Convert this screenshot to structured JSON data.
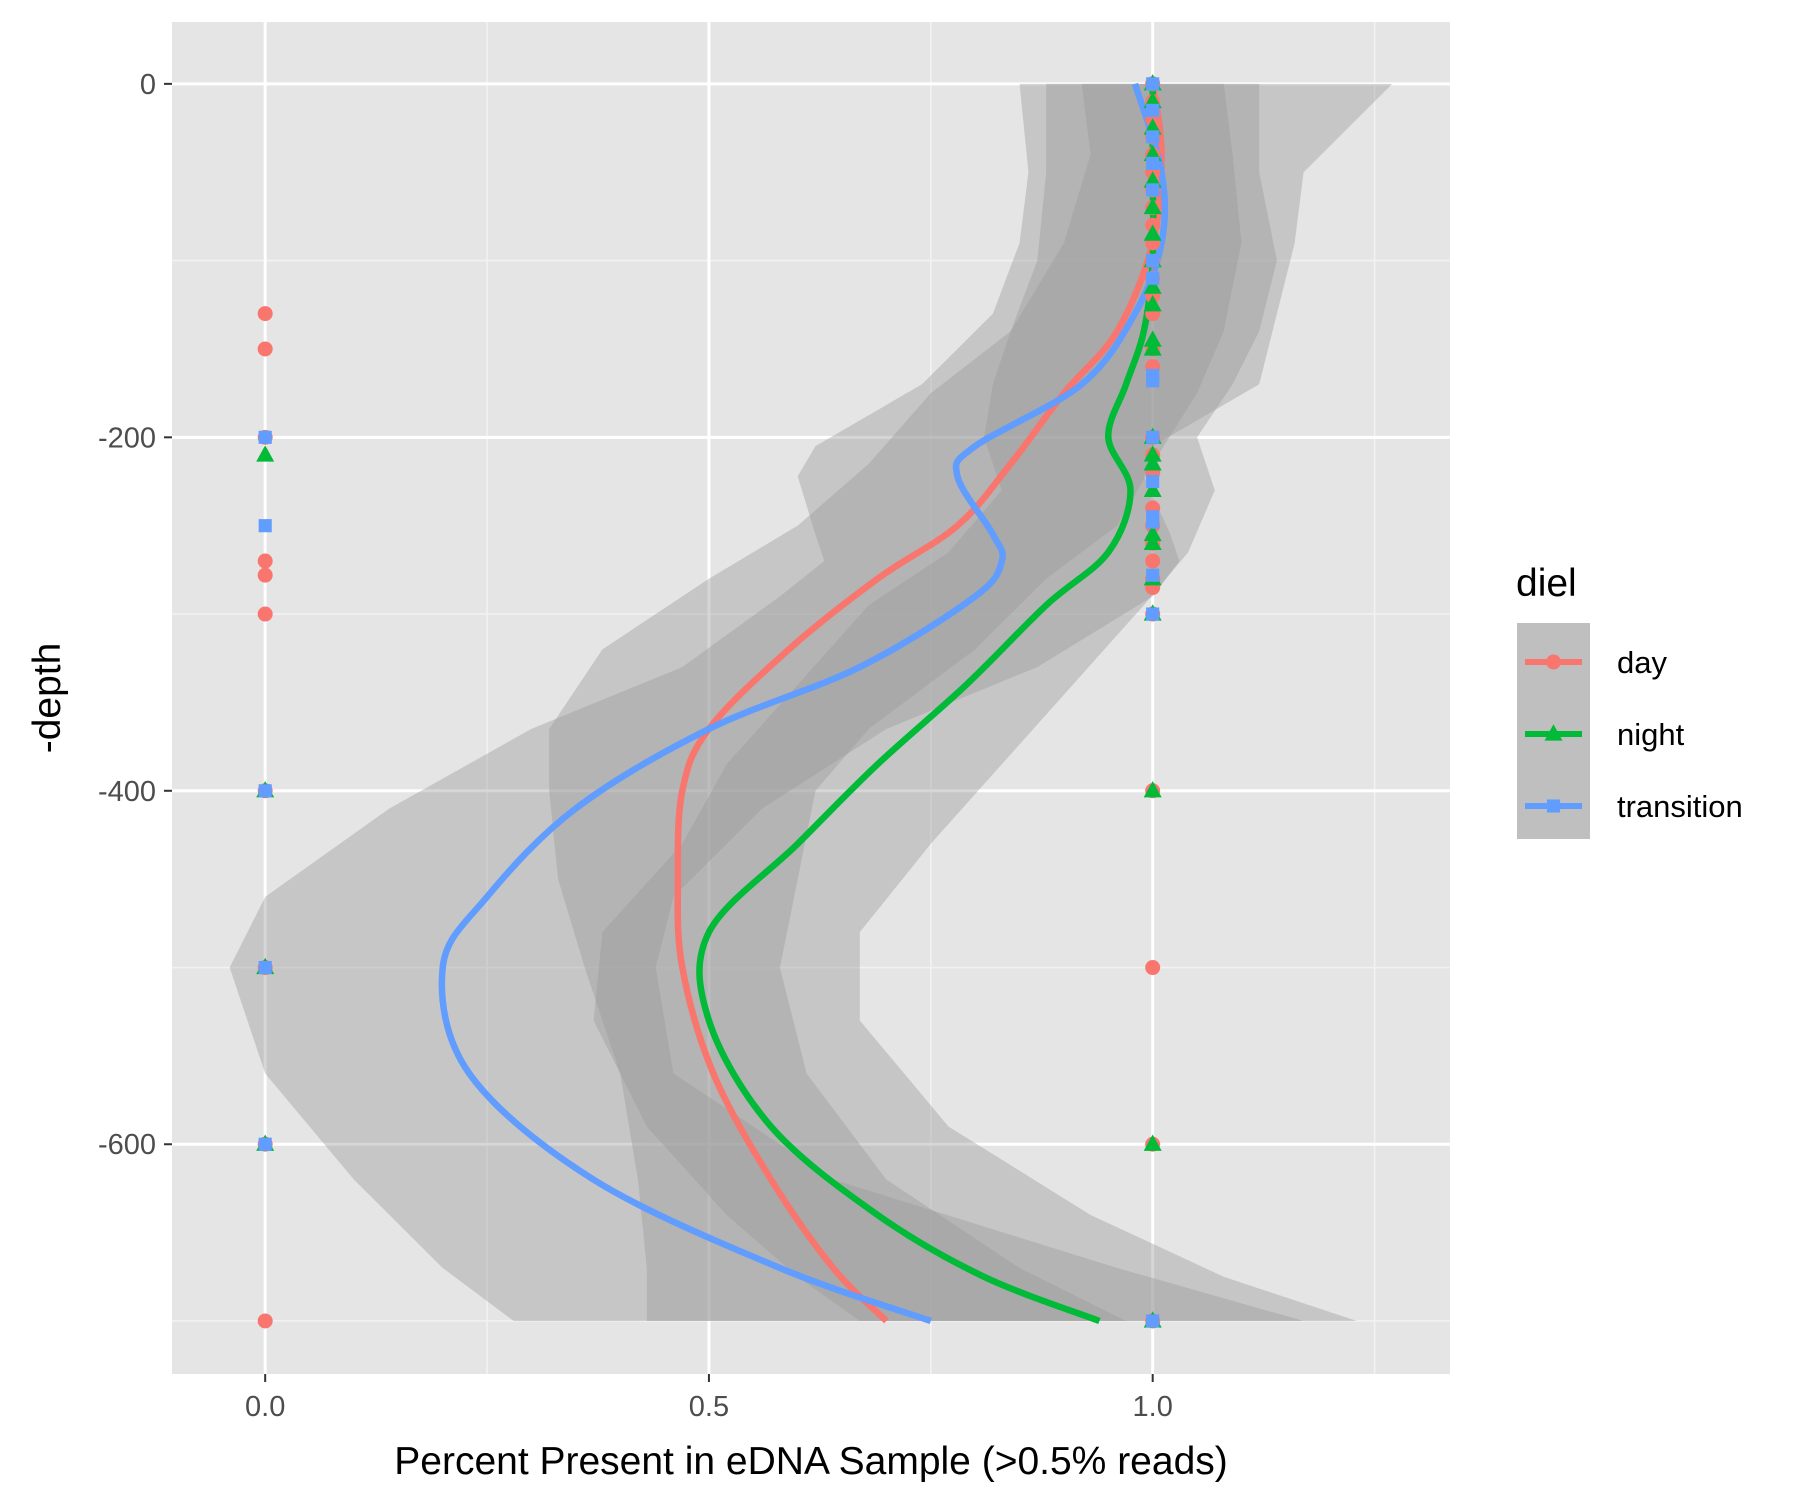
{
  "chart_data": {
    "type": "scatter",
    "title": "",
    "xlabel": "Percent Present in eDNA Sample (>0.5% reads)",
    "ylabel": "-depth",
    "xlim": [
      -0.105,
      1.335
    ],
    "ylim": [
      -730,
      35
    ],
    "x_ticks": [
      0.0,
      0.5,
      1.0
    ],
    "x_tick_labels": [
      "0.0",
      "0.5",
      "1.0"
    ],
    "y_ticks": [
      0,
      -200,
      -400,
      -600
    ],
    "y_tick_labels": [
      "0",
      "-200",
      "-400",
      "-600"
    ],
    "grid": true,
    "legend": {
      "title": "diel",
      "position": "right",
      "entries": [
        "day",
        "night",
        "transition"
      ]
    },
    "colors": {
      "day": "#F8766D",
      "night": "#00BA38",
      "transition": "#619CFF",
      "panel": "#E5E5E5",
      "ribbon": "#999999"
    },
    "series": [
      {
        "name": "day",
        "marker": "circle",
        "points": [
          [
            0,
            -130
          ],
          [
            0,
            -150
          ],
          [
            0,
            -200
          ],
          [
            0,
            -270
          ],
          [
            0,
            -278
          ],
          [
            0,
            -300
          ],
          [
            0,
            -400
          ],
          [
            0,
            -500
          ],
          [
            0,
            -600
          ],
          [
            0,
            -700
          ],
          [
            1,
            0
          ],
          [
            1,
            -10
          ],
          [
            1,
            -20
          ],
          [
            1,
            -30
          ],
          [
            1,
            -40
          ],
          [
            1,
            -50
          ],
          [
            1,
            -60
          ],
          [
            1,
            -70
          ],
          [
            1,
            -80
          ],
          [
            1,
            -90
          ],
          [
            1,
            -100
          ],
          [
            1,
            -110
          ],
          [
            1,
            -120
          ],
          [
            1,
            -130
          ],
          [
            1,
            -150
          ],
          [
            1,
            -160
          ],
          [
            1,
            -200
          ],
          [
            1,
            -210
          ],
          [
            1,
            -220
          ],
          [
            1,
            -240
          ],
          [
            1,
            -250
          ],
          [
            1,
            -260
          ],
          [
            1,
            -270
          ],
          [
            1,
            -280
          ],
          [
            1,
            -285
          ],
          [
            1,
            -300
          ],
          [
            1,
            -400
          ],
          [
            1,
            -500
          ],
          [
            1,
            -600
          ],
          [
            1,
            -700
          ]
        ],
        "smooth": [
          [
            1.0,
            0
          ],
          [
            1.01,
            -40
          ],
          [
            1.0,
            -90
          ],
          [
            0.96,
            -140
          ],
          [
            0.9,
            -175
          ],
          [
            0.84,
            -215
          ],
          [
            0.78,
            -250
          ],
          [
            0.69,
            -280
          ],
          [
            0.59,
            -320
          ],
          [
            0.5,
            -365
          ],
          [
            0.47,
            -400
          ],
          [
            0.465,
            -450
          ],
          [
            0.47,
            -500
          ],
          [
            0.505,
            -560
          ],
          [
            0.57,
            -620
          ],
          [
            0.64,
            -670
          ],
          [
            0.7,
            -700
          ]
        ],
        "ribbon_lo": [
          [
            0.92,
            0
          ],
          [
            0.93,
            -40
          ],
          [
            0.9,
            -90
          ],
          [
            0.84,
            -140
          ],
          [
            0.75,
            -175
          ],
          [
            0.68,
            -215
          ],
          [
            0.6,
            -250
          ],
          [
            0.5,
            -280
          ],
          [
            0.38,
            -320
          ],
          [
            0.32,
            -365
          ],
          [
            0.32,
            -400
          ],
          [
            0.33,
            -450
          ],
          [
            0.36,
            -500
          ],
          [
            0.4,
            -560
          ],
          [
            0.42,
            -620
          ],
          [
            0.43,
            -670
          ],
          [
            0.43,
            -700
          ]
        ],
        "ribbon_hi": [
          [
            1.08,
            0
          ],
          [
            1.09,
            -40
          ],
          [
            1.1,
            -90
          ],
          [
            1.08,
            -140
          ],
          [
            1.05,
            -175
          ],
          [
            1.0,
            -215
          ],
          [
            0.96,
            -250
          ],
          [
            0.88,
            -280
          ],
          [
            0.8,
            -320
          ],
          [
            0.68,
            -365
          ],
          [
            0.62,
            -400
          ],
          [
            0.6,
            -450
          ],
          [
            0.58,
            -500
          ],
          [
            0.61,
            -560
          ],
          [
            0.7,
            -620
          ],
          [
            0.85,
            -670
          ],
          [
            0.97,
            -700
          ]
        ]
      },
      {
        "name": "night",
        "marker": "triangle",
        "points": [
          [
            0,
            -210
          ],
          [
            0,
            -400
          ],
          [
            0,
            -500
          ],
          [
            0,
            -600
          ],
          [
            1,
            0
          ],
          [
            1,
            -10
          ],
          [
            1,
            -25
          ],
          [
            1,
            -40
          ],
          [
            1,
            -55
          ],
          [
            1,
            -70
          ],
          [
            1,
            -85
          ],
          [
            1,
            -100
          ],
          [
            1,
            -115
          ],
          [
            1,
            -125
          ],
          [
            1,
            -145
          ],
          [
            1,
            -150
          ],
          [
            1,
            -200
          ],
          [
            1,
            -210
          ],
          [
            1,
            -215
          ],
          [
            1,
            -230
          ],
          [
            1,
            -255
          ],
          [
            1,
            -260
          ],
          [
            1,
            -280
          ],
          [
            1,
            -300
          ],
          [
            1,
            -400
          ],
          [
            1,
            -600
          ],
          [
            1,
            -700
          ]
        ],
        "smooth": [
          [
            1.0,
            0
          ],
          [
            1.0,
            -50
          ],
          [
            1.0,
            -100
          ],
          [
            0.99,
            -140
          ],
          [
            0.97,
            -170
          ],
          [
            0.95,
            -200
          ],
          [
            0.975,
            -230
          ],
          [
            0.95,
            -265
          ],
          [
            0.88,
            -295
          ],
          [
            0.79,
            -340
          ],
          [
            0.69,
            -385
          ],
          [
            0.6,
            -430
          ],
          [
            0.5,
            -480
          ],
          [
            0.5,
            -530
          ],
          [
            0.57,
            -590
          ],
          [
            0.69,
            -640
          ],
          [
            0.81,
            -675
          ],
          [
            0.94,
            -700
          ]
        ],
        "ribbon_lo": [
          [
            0.88,
            0
          ],
          [
            0.88,
            -50
          ],
          [
            0.87,
            -100
          ],
          [
            0.84,
            -140
          ],
          [
            0.82,
            -170
          ],
          [
            0.81,
            -200
          ],
          [
            0.83,
            -230
          ],
          [
            0.77,
            -265
          ],
          [
            0.68,
            -295
          ],
          [
            0.6,
            -340
          ],
          [
            0.52,
            -385
          ],
          [
            0.47,
            -430
          ],
          [
            0.38,
            -480
          ],
          [
            0.37,
            -530
          ],
          [
            0.43,
            -590
          ],
          [
            0.52,
            -640
          ],
          [
            0.6,
            -675
          ],
          [
            0.67,
            -700
          ]
        ],
        "ribbon_hi": [
          [
            1.12,
            0
          ],
          [
            1.12,
            -50
          ],
          [
            1.14,
            -100
          ],
          [
            1.12,
            -140
          ],
          [
            1.09,
            -170
          ],
          [
            1.05,
            -200
          ],
          [
            1.07,
            -230
          ],
          [
            1.04,
            -265
          ],
          [
            0.99,
            -295
          ],
          [
            0.91,
            -340
          ],
          [
            0.83,
            -385
          ],
          [
            0.75,
            -430
          ],
          [
            0.67,
            -480
          ],
          [
            0.67,
            -530
          ],
          [
            0.77,
            -590
          ],
          [
            0.93,
            -640
          ],
          [
            1.08,
            -675
          ],
          [
            1.23,
            -700
          ]
        ]
      },
      {
        "name": "transition",
        "marker": "square",
        "points": [
          [
            0,
            -200
          ],
          [
            0,
            -250
          ],
          [
            0,
            -400
          ],
          [
            0,
            -500
          ],
          [
            0,
            -600
          ],
          [
            1,
            0
          ],
          [
            1,
            -15
          ],
          [
            1,
            -30
          ],
          [
            1,
            -45
          ],
          [
            1,
            -60
          ],
          [
            1,
            -100
          ],
          [
            1,
            -110
          ],
          [
            1,
            -165
          ],
          [
            1,
            -168
          ],
          [
            1,
            -200
          ],
          [
            1,
            -225
          ],
          [
            1,
            -245
          ],
          [
            1,
            -248
          ],
          [
            1,
            -278
          ],
          [
            1,
            -300
          ],
          [
            1,
            -700
          ]
        ],
        "smooth": [
          [
            0.98,
            0
          ],
          [
            1.01,
            -50
          ],
          [
            1.01,
            -90
          ],
          [
            0.98,
            -130
          ],
          [
            0.92,
            -170
          ],
          [
            0.8,
            -205
          ],
          [
            0.78,
            -222
          ],
          [
            0.82,
            -255
          ],
          [
            0.83,
            -270
          ],
          [
            0.8,
            -290
          ],
          [
            0.67,
            -330
          ],
          [
            0.5,
            -365
          ],
          [
            0.35,
            -410
          ],
          [
            0.25,
            -460
          ],
          [
            0.2,
            -500
          ],
          [
            0.23,
            -560
          ],
          [
            0.37,
            -620
          ],
          [
            0.58,
            -670
          ],
          [
            0.75,
            -700
          ]
        ],
        "ribbon_lo": [
          [
            0.85,
            0
          ],
          [
            0.86,
            -50
          ],
          [
            0.85,
            -90
          ],
          [
            0.82,
            -130
          ],
          [
            0.74,
            -170
          ],
          [
            0.62,
            -205
          ],
          [
            0.6,
            -222
          ],
          [
            0.62,
            -255
          ],
          [
            0.63,
            -270
          ],
          [
            0.58,
            -290
          ],
          [
            0.47,
            -330
          ],
          [
            0.3,
            -365
          ],
          [
            0.14,
            -410
          ],
          [
            0.0,
            -460
          ],
          [
            -0.04,
            -500
          ],
          [
            0.0,
            -560
          ],
          [
            0.1,
            -620
          ],
          [
            0.2,
            -670
          ],
          [
            0.28,
            -700
          ]
        ],
        "ribbon_hi": [
          [
            1.27,
            0
          ],
          [
            1.17,
            -50
          ],
          [
            1.16,
            -90
          ],
          [
            1.14,
            -130
          ],
          [
            1.12,
            -170
          ],
          [
            1.0,
            -205
          ],
          [
            0.99,
            -222
          ],
          [
            1.02,
            -255
          ],
          [
            1.03,
            -270
          ],
          [
            1.0,
            -290
          ],
          [
            0.87,
            -330
          ],
          [
            0.7,
            -365
          ],
          [
            0.56,
            -410
          ],
          [
            0.46,
            -460
          ],
          [
            0.44,
            -500
          ],
          [
            0.46,
            -560
          ],
          [
            0.64,
            -620
          ],
          [
            0.96,
            -670
          ],
          [
            1.17,
            -700
          ]
        ]
      }
    ]
  }
}
